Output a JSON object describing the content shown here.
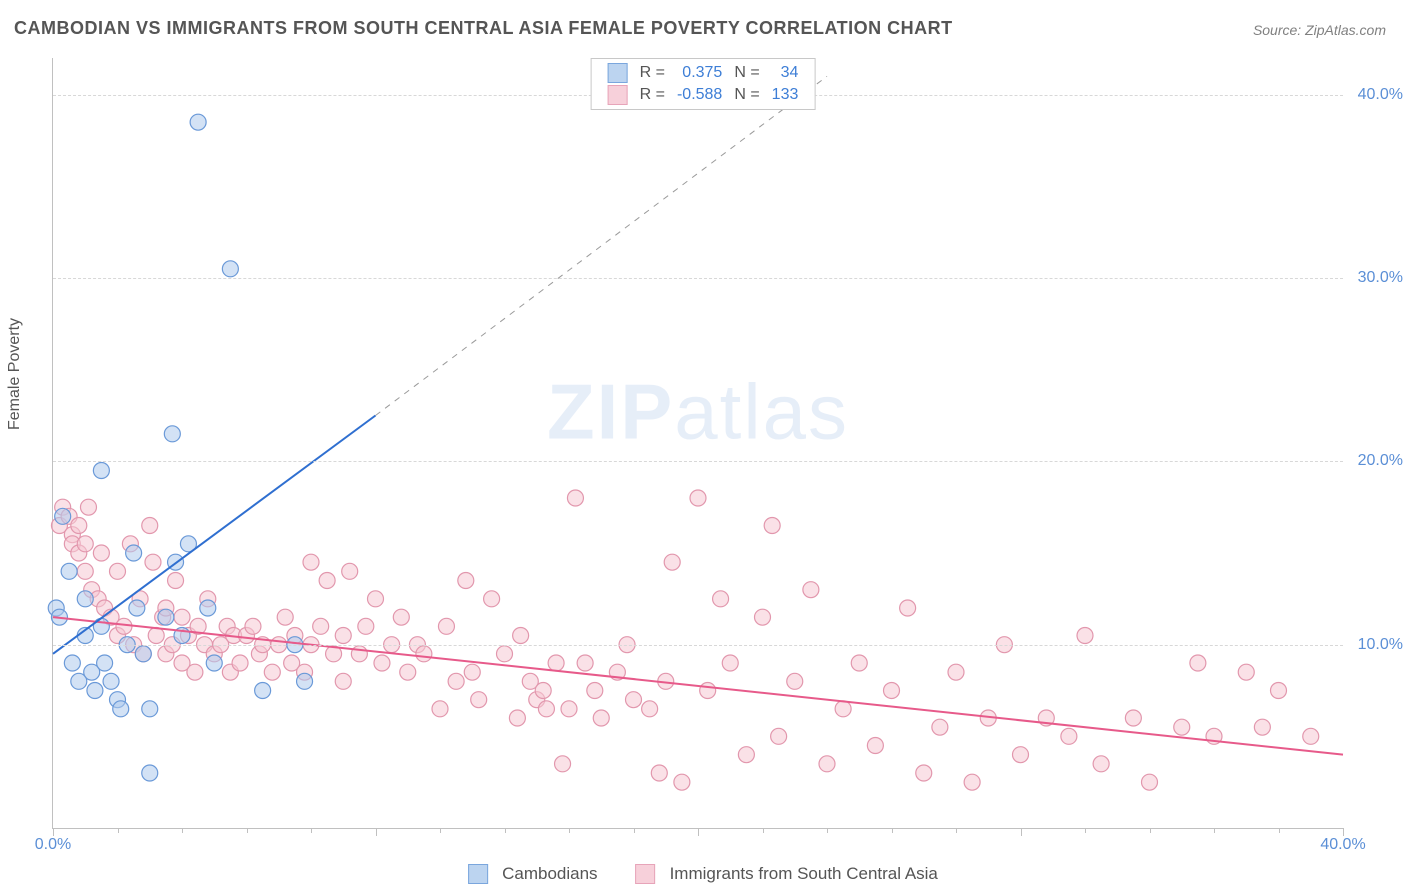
{
  "title": "CAMBODIAN VS IMMIGRANTS FROM SOUTH CENTRAL ASIA FEMALE POVERTY CORRELATION CHART",
  "source": "Source: ZipAtlas.com",
  "ylabel": "Female Poverty",
  "watermark_a": "ZIP",
  "watermark_b": "atlas",
  "chart": {
    "type": "scatter",
    "xlim": [
      0,
      40
    ],
    "ylim": [
      0,
      42
    ],
    "x_ticks": [
      0,
      10,
      20,
      30,
      40
    ],
    "x_tick_labels": [
      "0.0%",
      "",
      "",
      "",
      "40.0%"
    ],
    "y_ticks": [
      10,
      20,
      30,
      40
    ],
    "y_tick_labels": [
      "10.0%",
      "20.0%",
      "30.0%",
      "40.0%"
    ],
    "grid_color": "#d8d8d8",
    "axis_color": "#c0c0c0",
    "tick_label_color": "#5b8fd6",
    "minor_x_ticks": [
      2,
      4,
      6,
      8,
      12,
      14,
      16,
      18,
      22,
      24,
      26,
      28,
      32,
      34,
      36,
      38
    ],
    "background_color": "#ffffff"
  },
  "series_a": {
    "name": "Cambodians",
    "R": "0.375",
    "N": "34",
    "marker_fill": "#aecbec",
    "marker_stroke": "#6a99d8",
    "marker_radius": 8,
    "line_color": "#2f6fd0",
    "line_width": 2,
    "trend": {
      "x1": 0,
      "y1": 9.5,
      "x2": 10,
      "y2": 22.5,
      "x2_dash": 24,
      "y2_dash": 41
    },
    "points": [
      [
        0.1,
        12.0
      ],
      [
        0.2,
        11.5
      ],
      [
        0.3,
        17.0
      ],
      [
        0.5,
        14.0
      ],
      [
        0.6,
        9.0
      ],
      [
        0.8,
        8.0
      ],
      [
        1.0,
        12.5
      ],
      [
        1.0,
        10.5
      ],
      [
        1.2,
        8.5
      ],
      [
        1.3,
        7.5
      ],
      [
        1.5,
        19.5
      ],
      [
        1.5,
        11.0
      ],
      [
        1.6,
        9.0
      ],
      [
        1.8,
        8.0
      ],
      [
        2.0,
        7.0
      ],
      [
        2.1,
        6.5
      ],
      [
        2.3,
        10.0
      ],
      [
        2.5,
        15.0
      ],
      [
        2.6,
        12.0
      ],
      [
        2.8,
        9.5
      ],
      [
        3.0,
        6.5
      ],
      [
        3.0,
        3.0
      ],
      [
        3.5,
        11.5
      ],
      [
        3.7,
        21.5
      ],
      [
        3.8,
        14.5
      ],
      [
        4.0,
        10.5
      ],
      [
        4.2,
        15.5
      ],
      [
        4.5,
        38.5
      ],
      [
        4.8,
        12.0
      ],
      [
        5.0,
        9.0
      ],
      [
        5.5,
        30.5
      ],
      [
        6.5,
        7.5
      ],
      [
        7.5,
        10.0
      ],
      [
        7.8,
        8.0
      ]
    ]
  },
  "series_b": {
    "name": "Immigrants from South Central Asia",
    "R": "-0.588",
    "N": "133",
    "marker_fill": "#f6c9d4",
    "marker_stroke": "#e297ad",
    "marker_radius": 8,
    "line_color": "#e75a8a",
    "line_width": 2,
    "trend": {
      "x1": 0,
      "y1": 11.5,
      "x2": 40,
      "y2": 4.0
    },
    "points": [
      [
        0.2,
        16.5
      ],
      [
        0.3,
        17.5
      ],
      [
        0.5,
        17.0
      ],
      [
        0.6,
        16.0
      ],
      [
        0.6,
        15.5
      ],
      [
        0.8,
        16.5
      ],
      [
        0.8,
        15.0
      ],
      [
        1.0,
        15.5
      ],
      [
        1.0,
        14.0
      ],
      [
        1.1,
        17.5
      ],
      [
        1.2,
        13.0
      ],
      [
        1.4,
        12.5
      ],
      [
        1.5,
        15.0
      ],
      [
        1.6,
        12.0
      ],
      [
        1.8,
        11.5
      ],
      [
        2.0,
        10.5
      ],
      [
        2.0,
        14.0
      ],
      [
        2.2,
        11.0
      ],
      [
        2.4,
        15.5
      ],
      [
        2.5,
        10.0
      ],
      [
        2.7,
        12.5
      ],
      [
        2.8,
        9.5
      ],
      [
        3.0,
        16.5
      ],
      [
        3.1,
        14.5
      ],
      [
        3.2,
        10.5
      ],
      [
        3.4,
        11.5
      ],
      [
        3.5,
        9.5
      ],
      [
        3.5,
        12.0
      ],
      [
        3.7,
        10.0
      ],
      [
        3.8,
        13.5
      ],
      [
        4.0,
        11.5
      ],
      [
        4.0,
        9.0
      ],
      [
        4.2,
        10.5
      ],
      [
        4.4,
        8.5
      ],
      [
        4.5,
        11.0
      ],
      [
        4.7,
        10.0
      ],
      [
        4.8,
        12.5
      ],
      [
        5.0,
        9.5
      ],
      [
        5.2,
        10.0
      ],
      [
        5.4,
        11.0
      ],
      [
        5.5,
        8.5
      ],
      [
        5.6,
        10.5
      ],
      [
        5.8,
        9.0
      ],
      [
        6.0,
        10.5
      ],
      [
        6.2,
        11.0
      ],
      [
        6.4,
        9.5
      ],
      [
        6.5,
        10.0
      ],
      [
        6.8,
        8.5
      ],
      [
        7.0,
        10.0
      ],
      [
        7.2,
        11.5
      ],
      [
        7.4,
        9.0
      ],
      [
        7.5,
        10.5
      ],
      [
        7.8,
        8.5
      ],
      [
        8.0,
        14.5
      ],
      [
        8.0,
        10.0
      ],
      [
        8.3,
        11.0
      ],
      [
        8.5,
        13.5
      ],
      [
        8.7,
        9.5
      ],
      [
        9.0,
        10.5
      ],
      [
        9.0,
        8.0
      ],
      [
        9.2,
        14.0
      ],
      [
        9.5,
        9.5
      ],
      [
        9.7,
        11.0
      ],
      [
        10.0,
        12.5
      ],
      [
        10.2,
        9.0
      ],
      [
        10.5,
        10.0
      ],
      [
        10.8,
        11.5
      ],
      [
        11.0,
        8.5
      ],
      [
        11.3,
        10.0
      ],
      [
        11.5,
        9.5
      ],
      [
        12.0,
        6.5
      ],
      [
        12.2,
        11.0
      ],
      [
        12.5,
        8.0
      ],
      [
        12.8,
        13.5
      ],
      [
        13.0,
        8.5
      ],
      [
        13.2,
        7.0
      ],
      [
        13.6,
        12.5
      ],
      [
        14.0,
        9.5
      ],
      [
        14.4,
        6.0
      ],
      [
        14.5,
        10.5
      ],
      [
        14.8,
        8.0
      ],
      [
        15.0,
        7.0
      ],
      [
        15.2,
        7.5
      ],
      [
        15.3,
        6.5
      ],
      [
        15.6,
        9.0
      ],
      [
        15.8,
        3.5
      ],
      [
        16.0,
        6.5
      ],
      [
        16.2,
        18.0
      ],
      [
        16.5,
        9.0
      ],
      [
        16.8,
        7.5
      ],
      [
        17.0,
        6.0
      ],
      [
        17.5,
        8.5
      ],
      [
        17.8,
        10.0
      ],
      [
        18.0,
        7.0
      ],
      [
        18.5,
        6.5
      ],
      [
        18.8,
        3.0
      ],
      [
        19.0,
        8.0
      ],
      [
        19.2,
        14.5
      ],
      [
        19.5,
        2.5
      ],
      [
        20.0,
        18.0
      ],
      [
        20.3,
        7.5
      ],
      [
        20.7,
        12.5
      ],
      [
        21.0,
        9.0
      ],
      [
        21.5,
        4.0
      ],
      [
        22.0,
        11.5
      ],
      [
        22.3,
        16.5
      ],
      [
        22.5,
        5.0
      ],
      [
        23.0,
        8.0
      ],
      [
        23.5,
        13.0
      ],
      [
        24.0,
        3.5
      ],
      [
        24.5,
        6.5
      ],
      [
        25.0,
        9.0
      ],
      [
        25.5,
        4.5
      ],
      [
        26.0,
        7.5
      ],
      [
        26.5,
        12.0
      ],
      [
        27.0,
        3.0
      ],
      [
        27.5,
        5.5
      ],
      [
        28.0,
        8.5
      ],
      [
        28.5,
        2.5
      ],
      [
        29.0,
        6.0
      ],
      [
        29.5,
        10.0
      ],
      [
        30.0,
        4.0
      ],
      [
        30.8,
        6.0
      ],
      [
        31.5,
        5.0
      ],
      [
        32.0,
        10.5
      ],
      [
        32.5,
        3.5
      ],
      [
        33.5,
        6.0
      ],
      [
        34.0,
        2.5
      ],
      [
        35.0,
        5.5
      ],
      [
        35.5,
        9.0
      ],
      [
        36.0,
        5.0
      ],
      [
        37.0,
        8.5
      ],
      [
        37.5,
        5.5
      ],
      [
        38.0,
        7.5
      ],
      [
        39.0,
        5.0
      ]
    ]
  },
  "legend_top_labels": {
    "R": "R =",
    "N": "N ="
  },
  "colors": {
    "stat_value": "#3d7ed6",
    "swatch_a_fill": "#bcd4f0",
    "swatch_a_border": "#7aa6dd",
    "swatch_b_fill": "#f7d0da",
    "swatch_b_border": "#e7a4b9"
  }
}
